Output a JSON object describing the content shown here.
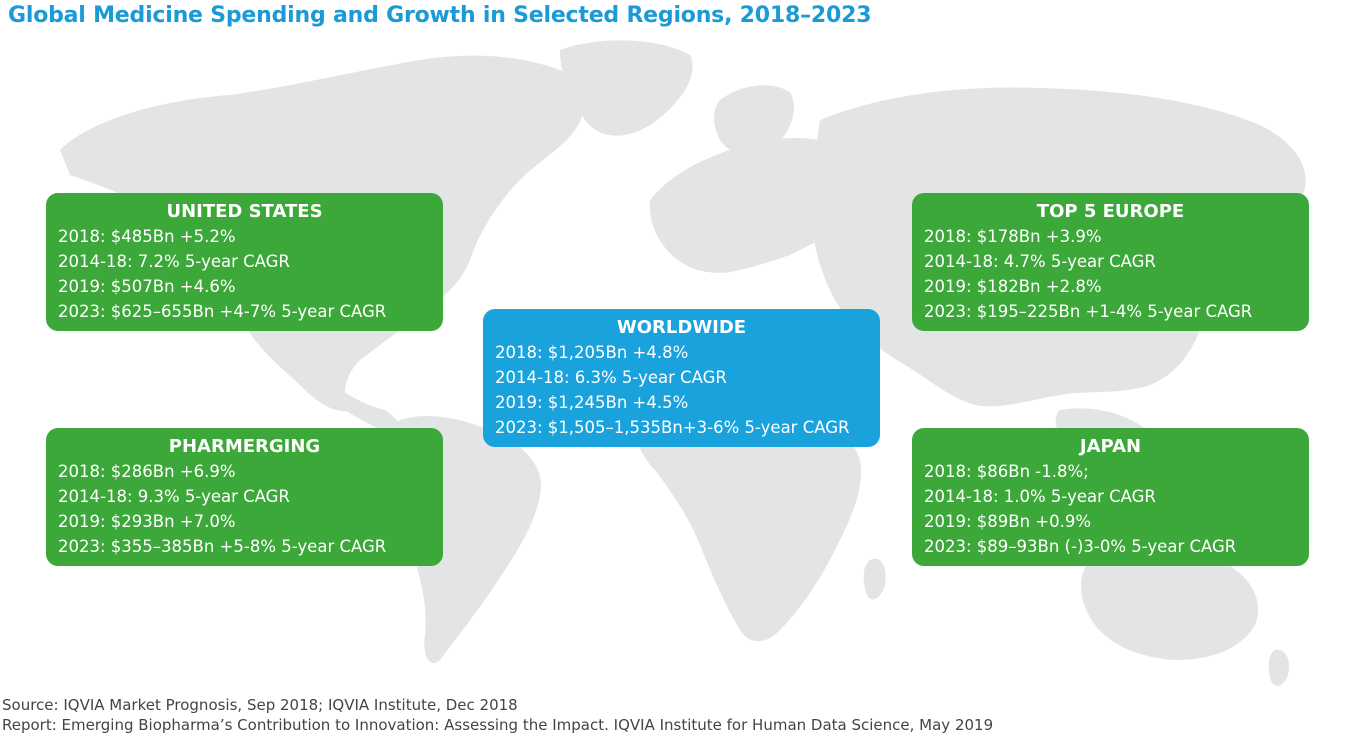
{
  "title": "Global Medicine Spending and Growth in Selected Regions, 2018–2023",
  "colors": {
    "title": "#1a9ad6",
    "region_box": "#3ca83a",
    "worldwide_box": "#1aa2dc",
    "land": "#e3e4e6"
  },
  "regions": {
    "united_states": {
      "name": "UNITED STATES",
      "lines": [
        "2018: $485Bn +5.2%",
        "2014-18: 7.2% 5-year CAGR",
        "2019: $507Bn +4.6%",
        "2023: $625–655Bn +4-7% 5-year CAGR"
      ]
    },
    "top5_europe": {
      "name": "TOP 5 EUROPE",
      "lines": [
        "2018: $178Bn +3.9%",
        "2014-18: 4.7% 5-year CAGR",
        "2019: $182Bn +2.8%",
        "2023: $195–225Bn +1-4% 5-year CAGR"
      ]
    },
    "worldwide": {
      "name": "WORLDWIDE",
      "lines": [
        "2018: $1,205Bn +4.8%",
        "2014-18: 6.3% 5-year CAGR",
        "2019: $1,245Bn +4.5%",
        "2023: $1,505–1,535Bn+3-6% 5-year CAGR"
      ]
    },
    "pharmerging": {
      "name": "PHARMERGING",
      "lines": [
        "2018: $286Bn +6.9%",
        "2014-18: 9.3% 5-year CAGR",
        "2019: $293Bn +7.0%",
        "2023: $355–385Bn +5-8% 5-year CAGR"
      ]
    },
    "japan": {
      "name": "JAPAN",
      "lines": [
        "2018: $86Bn -1.8%;",
        "2014-18: 1.0% 5-year CAGR",
        "2019: $89Bn +0.9%",
        "2023: $89–93Bn (-)3-0% 5-year CAGR"
      ]
    }
  },
  "footer": {
    "source": "Source: IQVIA Market Prognosis, Sep 2018; IQVIA Institute, Dec 2018",
    "report": "Report: Emerging Biopharma’s Contribution to Innovation: Assessing the Impact. IQVIA Institute for Human Data Science, May 2019"
  }
}
